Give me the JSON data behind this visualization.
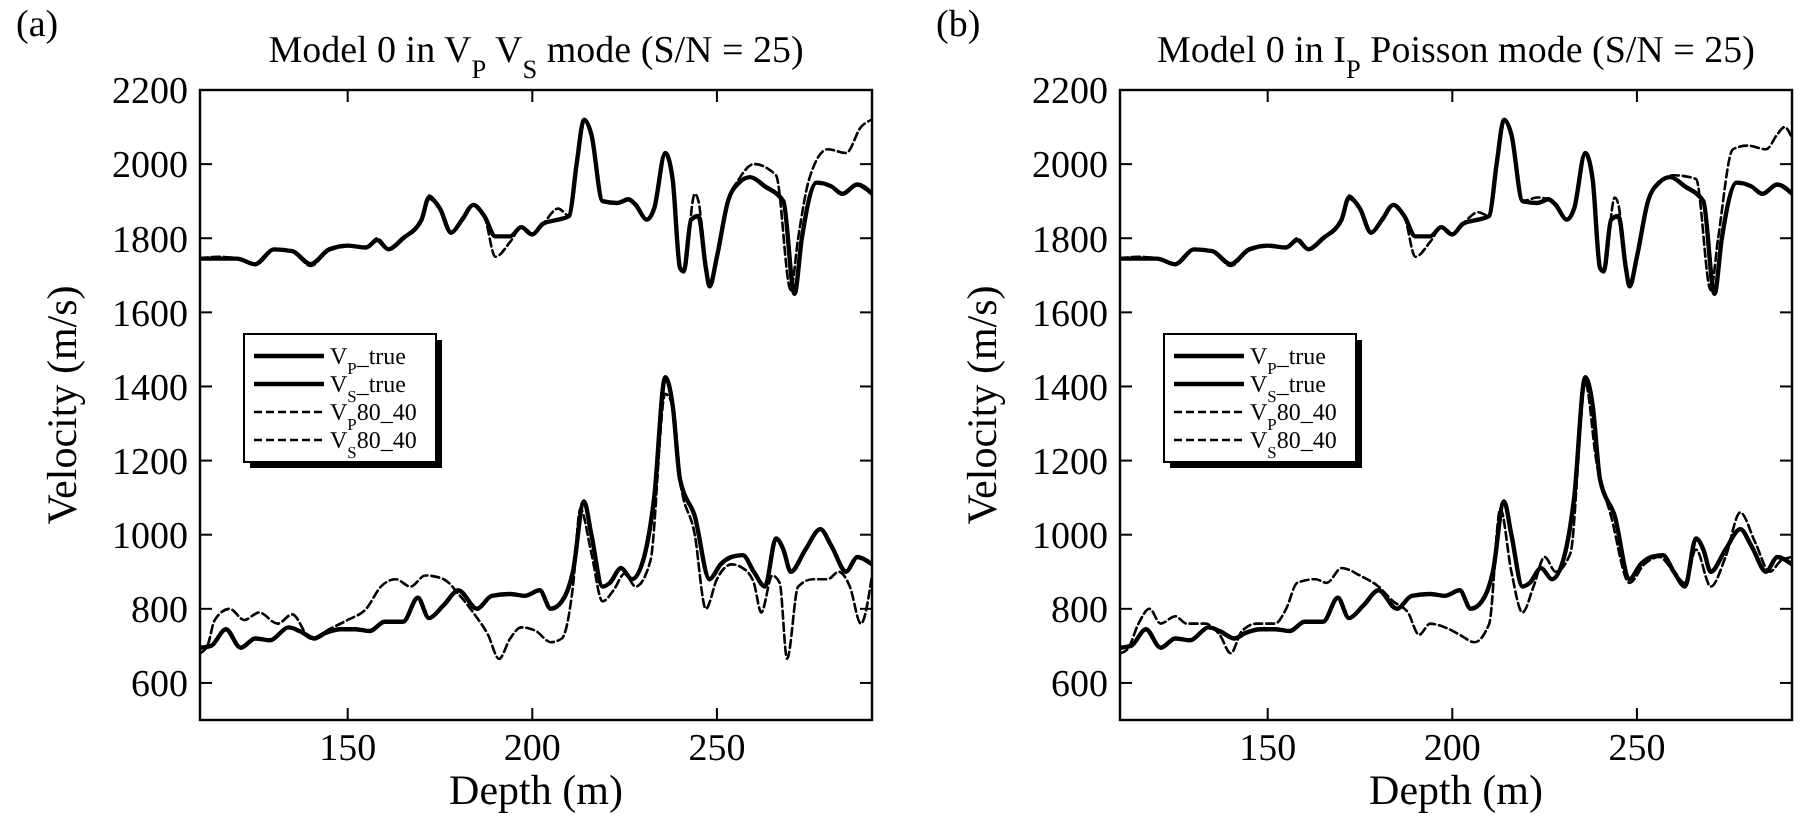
{
  "chart_data": [
    {
      "type": "line",
      "title": "Model 0 in V$_{P}$ V$_{S}$ mode (S/N = 25)",
      "xlabel": "Depth (m)",
      "ylabel": "Velocity (m/s)",
      "annotations": [
        "(a)"
      ],
      "xlim": [
        110,
        292
      ],
      "ylim": [
        500,
        2200
      ],
      "xticks": [
        150,
        200,
        250
      ],
      "yticks": [
        600,
        800,
        1000,
        1200,
        1400,
        1600,
        1800,
        2000,
        2200
      ],
      "grid": false,
      "legend": "left",
      "series": [
        {
          "name": "V$_{P}$_true",
          "color": "#000000",
          "line_style": "solid",
          "x": [
            110,
            115,
            120,
            125,
            130,
            135,
            140,
            145,
            150,
            155,
            158,
            161,
            165,
            170,
            172,
            175,
            178,
            181,
            184,
            187,
            190,
            194,
            197,
            200,
            203,
            207,
            210,
            212,
            214,
            216,
            219,
            223,
            226,
            228,
            231,
            233,
            236,
            238,
            240,
            241,
            243,
            245,
            247,
            248,
            250,
            253,
            256,
            259,
            263,
            268,
            271,
            273,
            277,
            281,
            284,
            288,
            292
          ],
          "values": [
            1745,
            1745,
            1745,
            1730,
            1770,
            1765,
            1730,
            1770,
            1780,
            1775,
            1795,
            1770,
            1800,
            1850,
            1910,
            1880,
            1815,
            1850,
            1890,
            1860,
            1805,
            1805,
            1830,
            1810,
            1840,
            1850,
            1860,
            2000,
            2120,
            2080,
            1900,
            1895,
            1905,
            1890,
            1850,
            1880,
            2030,
            1960,
            1720,
            1710,
            1850,
            1860,
            1720,
            1670,
            1750,
            1900,
            1950,
            1965,
            1940,
            1900,
            1650,
            1800,
            1950,
            1940,
            1920,
            1945,
            1920
          ]
        },
        {
          "name": "V$_{S}$_true",
          "color": "#000000",
          "line_style": "solid",
          "x": [
            110,
            113,
            117,
            121,
            125,
            129,
            134,
            137,
            141,
            144,
            148,
            152,
            156,
            160,
            165,
            169,
            172,
            176,
            180,
            185,
            189,
            194,
            198,
            202,
            205,
            208,
            211,
            214,
            216,
            219,
            221,
            224,
            227,
            230,
            233,
            236,
            238,
            240,
            244,
            248,
            251,
            254,
            257,
            260,
            263,
            266,
            268,
            270,
            274,
            278,
            281,
            285,
            288,
            292
          ],
          "values": [
            695,
            700,
            745,
            695,
            720,
            715,
            750,
            740,
            720,
            735,
            745,
            745,
            740,
            765,
            765,
            830,
            775,
            810,
            850,
            800,
            835,
            840,
            835,
            850,
            800,
            820,
            900,
            1090,
            1000,
            860,
            870,
            910,
            880,
            930,
            1100,
            1425,
            1350,
            1150,
            1050,
            880,
            920,
            940,
            945,
            900,
            860,
            990,
            960,
            900,
            960,
            1015,
            970,
            900,
            940,
            920
          ]
        },
        {
          "name": "V$_{P}$80_40",
          "color": "#000000",
          "line_style": "dashed",
          "x": [
            110,
            115,
            120,
            125,
            130,
            135,
            140,
            145,
            150,
            155,
            158,
            161,
            165,
            170,
            172,
            175,
            178,
            181,
            184,
            187,
            190,
            194,
            197,
            200,
            203,
            207,
            210,
            212,
            214,
            216,
            219,
            223,
            226,
            228,
            231,
            233,
            236,
            238,
            240,
            241,
            244,
            245,
            247,
            248,
            250,
            253,
            256,
            260,
            266,
            270,
            272,
            275,
            280,
            285,
            289,
            292
          ],
          "values": [
            1745,
            1750,
            1745,
            1730,
            1770,
            1765,
            1725,
            1770,
            1780,
            1775,
            1800,
            1770,
            1800,
            1850,
            1915,
            1880,
            1815,
            1850,
            1890,
            1860,
            1750,
            1790,
            1830,
            1810,
            1840,
            1880,
            1860,
            2000,
            2120,
            2080,
            1900,
            1895,
            1905,
            1890,
            1850,
            1880,
            2030,
            1960,
            1720,
            1710,
            1920,
            1900,
            1720,
            1670,
            1750,
            1900,
            1960,
            2000,
            1970,
            1660,
            1800,
            1960,
            2040,
            2030,
            2100,
            2120
          ]
        },
        {
          "name": "V$_{S}$80_40",
          "color": "#000000",
          "line_style": "dashed",
          "x": [
            110,
            112,
            114,
            118,
            122,
            126,
            131,
            135,
            140,
            145,
            150,
            155,
            159,
            163,
            167,
            171,
            176,
            180,
            184,
            188,
            191,
            194,
            197,
            201,
            205,
            208,
            211,
            213,
            216,
            219,
            222,
            225,
            228,
            232,
            236,
            238,
            240,
            244,
            247,
            250,
            254,
            257,
            260,
            262,
            265,
            267,
            269,
            272,
            276,
            280,
            283,
            286,
            289,
            292
          ],
          "values": [
            680,
            700,
            770,
            800,
            770,
            790,
            760,
            785,
            720,
            745,
            770,
            800,
            860,
            880,
            860,
            890,
            880,
            840,
            790,
            730,
            665,
            720,
            750,
            740,
            710,
            720,
            860,
            1070,
            950,
            820,
            850,
            895,
            860,
            930,
            1380,
            1350,
            1150,
            1000,
            800,
            880,
            920,
            910,
            870,
            790,
            890,
            870,
            665,
            860,
            880,
            880,
            900,
            860,
            760,
            890
          ]
        }
      ]
    },
    {
      "type": "line",
      "title": "Model 0 in I$_{P}$ Poisson mode (S/N = 25)",
      "xlabel": "Depth (m)",
      "ylabel": "Velocity (m/s)",
      "annotations": [
        "(b)"
      ],
      "xlim": [
        110,
        292
      ],
      "ylim": [
        500,
        2200
      ],
      "xticks": [
        150,
        200,
        250
      ],
      "yticks": [
        600,
        800,
        1000,
        1200,
        1400,
        1600,
        1800,
        2000,
        2200
      ],
      "grid": false,
      "legend": "left",
      "series": [
        {
          "name": "V$_{P}$_true",
          "color": "#000000",
          "line_style": "solid",
          "x": [
            110,
            115,
            120,
            125,
            130,
            135,
            140,
            145,
            150,
            155,
            158,
            161,
            165,
            170,
            172,
            175,
            178,
            181,
            184,
            187,
            190,
            194,
            197,
            200,
            203,
            207,
            210,
            212,
            214,
            216,
            219,
            223,
            226,
            228,
            231,
            233,
            236,
            238,
            240,
            241,
            243,
            245,
            247,
            248,
            250,
            253,
            256,
            259,
            263,
            268,
            271,
            273,
            277,
            281,
            284,
            288,
            292
          ],
          "values": [
            1745,
            1745,
            1745,
            1730,
            1770,
            1765,
            1730,
            1770,
            1780,
            1775,
            1795,
            1770,
            1800,
            1850,
            1910,
            1880,
            1815,
            1850,
            1890,
            1860,
            1805,
            1805,
            1830,
            1810,
            1840,
            1850,
            1860,
            2000,
            2120,
            2080,
            1900,
            1895,
            1905,
            1890,
            1850,
            1880,
            2030,
            1960,
            1720,
            1710,
            1850,
            1860,
            1720,
            1670,
            1750,
            1900,
            1950,
            1965,
            1940,
            1900,
            1650,
            1800,
            1950,
            1940,
            1920,
            1945,
            1920
          ]
        },
        {
          "name": "V$_{S}$_true",
          "color": "#000000",
          "line_style": "solid",
          "x": [
            110,
            113,
            117,
            121,
            125,
            129,
            134,
            137,
            141,
            144,
            148,
            152,
            156,
            160,
            165,
            169,
            172,
            176,
            180,
            185,
            189,
            194,
            198,
            202,
            205,
            208,
            211,
            214,
            216,
            219,
            221,
            224,
            227,
            230,
            233,
            236,
            238,
            240,
            244,
            248,
            251,
            254,
            257,
            260,
            263,
            266,
            268,
            270,
            274,
            278,
            281,
            285,
            288,
            292
          ],
          "values": [
            695,
            700,
            745,
            695,
            720,
            715,
            750,
            740,
            720,
            735,
            745,
            745,
            740,
            765,
            765,
            830,
            775,
            810,
            850,
            800,
            835,
            840,
            835,
            850,
            800,
            820,
            900,
            1090,
            1000,
            860,
            870,
            910,
            880,
            930,
            1100,
            1425,
            1350,
            1150,
            1050,
            880,
            920,
            940,
            945,
            900,
            860,
            990,
            960,
            900,
            960,
            1015,
            970,
            900,
            940,
            920
          ]
        },
        {
          "name": "V$_{P}$80_40",
          "color": "#000000",
          "line_style": "dashed",
          "x": [
            110,
            115,
            120,
            125,
            130,
            135,
            140,
            145,
            150,
            155,
            158,
            161,
            165,
            170,
            172,
            175,
            178,
            181,
            184,
            187,
            190,
            194,
            197,
            200,
            203,
            207,
            210,
            212,
            214,
            216,
            219,
            223,
            226,
            228,
            231,
            233,
            236,
            238,
            240,
            241,
            244,
            245,
            247,
            248,
            250,
            253,
            256,
            260,
            266,
            270,
            272,
            276,
            280,
            285,
            288,
            290,
            292
          ],
          "values": [
            1745,
            1750,
            1745,
            1730,
            1770,
            1765,
            1725,
            1770,
            1780,
            1775,
            1800,
            1770,
            1800,
            1850,
            1915,
            1880,
            1815,
            1850,
            1890,
            1860,
            1750,
            1790,
            1830,
            1810,
            1840,
            1870,
            1860,
            2000,
            2120,
            2080,
            1900,
            1910,
            1905,
            1890,
            1850,
            1880,
            2030,
            1960,
            1720,
            1710,
            1910,
            1890,
            1720,
            1670,
            1750,
            1900,
            1950,
            1970,
            1960,
            1660,
            1800,
            2040,
            2050,
            2040,
            2080,
            2100,
            2070
          ]
        },
        {
          "name": "V$_{S}$80_40",
          "color": "#000000",
          "line_style": "dashed",
          "x": [
            110,
            112,
            115,
            118,
            121,
            125,
            128,
            133,
            137,
            140,
            143,
            147,
            152,
            155,
            158,
            163,
            166,
            170,
            175,
            180,
            184,
            188,
            191,
            194,
            198,
            202,
            206,
            210,
            213,
            216,
            219,
            222,
            225,
            228,
            232,
            236,
            239,
            243,
            248,
            252,
            256,
            260,
            263,
            266,
            270,
            274,
            278,
            282,
            286,
            289,
            292
          ],
          "values": [
            680,
            690,
            760,
            800,
            760,
            780,
            760,
            760,
            730,
            680,
            740,
            760,
            760,
            800,
            870,
            880,
            870,
            910,
            890,
            860,
            820,
            790,
            730,
            760,
            750,
            730,
            710,
            760,
            1070,
            900,
            790,
            860,
            940,
            900,
            950,
            1410,
            1200,
            1050,
            870,
            920,
            940,
            900,
            870,
            960,
            860,
            940,
            1060,
            980,
            900,
            930,
            940
          ]
        }
      ]
    }
  ]
}
